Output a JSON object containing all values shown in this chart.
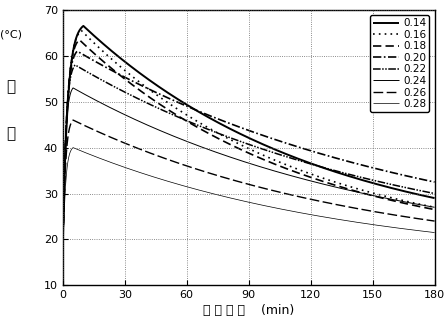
{
  "title": "",
  "xlabel_parts": [
    "养 护 时 间",
    "(min)"
  ],
  "xlim": [
    0,
    180
  ],
  "ylim": [
    10,
    70
  ],
  "xticks": [
    0,
    30,
    60,
    90,
    120,
    150,
    180
  ],
  "yticks": [
    10,
    20,
    30,
    40,
    50,
    60,
    70
  ],
  "series": [
    {
      "label": "0.14",
      "ls_key": "solid",
      "lw": 1.4,
      "peak_x": 10,
      "peak_y": 66.5,
      "start_y": 20.0,
      "end_y": 29.0,
      "base": 18.0
    },
    {
      "label": "0.16",
      "ls_key": "dotted",
      "lw": 1.2,
      "peak_x": 9,
      "peak_y": 65.5,
      "start_y": 19.0,
      "end_y": 27.0,
      "base": 17.5
    },
    {
      "label": "0.18",
      "ls_key": "dashed",
      "lw": 1.2,
      "peak_x": 8,
      "peak_y": 63.5,
      "start_y": 18.0,
      "end_y": 26.5,
      "base": 17.0
    },
    {
      "label": "0.20",
      "ls_key": "dashdot",
      "lw": 1.2,
      "peak_x": 7,
      "peak_y": 61.0,
      "start_y": 17.0,
      "end_y": 32.5,
      "base": 16.5
    },
    {
      "label": "0.22",
      "ls_key": "dashdotdot",
      "lw": 1.1,
      "peak_x": 6,
      "peak_y": 58.0,
      "start_y": 16.0,
      "end_y": 30.0,
      "base": 16.0
    },
    {
      "label": "0.24",
      "ls_key": "solid_thin",
      "lw": 0.7,
      "peak_x": 5,
      "peak_y": 53.0,
      "start_y": 15.0,
      "end_y": 27.0,
      "base": 15.5
    },
    {
      "label": "0.26",
      "ls_key": "longdash",
      "lw": 1.0,
      "peak_x": 5,
      "peak_y": 46.0,
      "start_y": 14.5,
      "end_y": 24.0,
      "base": 15.0
    },
    {
      "label": "0.28",
      "ls_key": "solid_verythin",
      "lw": 0.5,
      "peak_x": 5,
      "peak_y": 40.0,
      "start_y": 14.0,
      "end_y": 21.5,
      "base": 14.5
    }
  ],
  "background_color": "#ffffff",
  "legend_fontsize": 7.5,
  "tick_fontsize": 8
}
